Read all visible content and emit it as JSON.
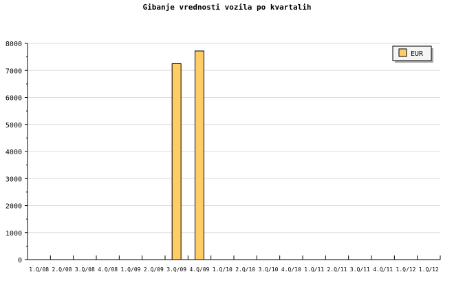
{
  "chart_data": {
    "type": "bar",
    "title": "Gibanje vrednosti vozila po kvartalih",
    "categories": [
      "1.Q/08",
      "2.Q/08",
      "3.Q/08",
      "4.Q/08",
      "1.Q/09",
      "2.Q/09",
      "3.Q/09",
      "4.Q/09",
      "1.Q/10",
      "2.Q/10",
      "3.Q/10",
      "4.Q/10",
      "1.Q/11",
      "2.Q/11",
      "3.Q/11",
      "4.Q/11",
      "1.Q/12",
      "1.Q/12"
    ],
    "series": [
      {
        "name": "EUR",
        "values": [
          0,
          0,
          0,
          0,
          0,
          0,
          7250,
          7720,
          0,
          0,
          0,
          0,
          0,
          0,
          0,
          0,
          0,
          0
        ],
        "color": "#ffcc66"
      }
    ],
    "ylim": [
      0,
      8000
    ],
    "yticks": [
      0,
      1000,
      2000,
      3000,
      4000,
      5000,
      6000,
      7000,
      8000
    ],
    "grid": true,
    "legend": "top-right",
    "xlabel": "",
    "ylabel": ""
  }
}
